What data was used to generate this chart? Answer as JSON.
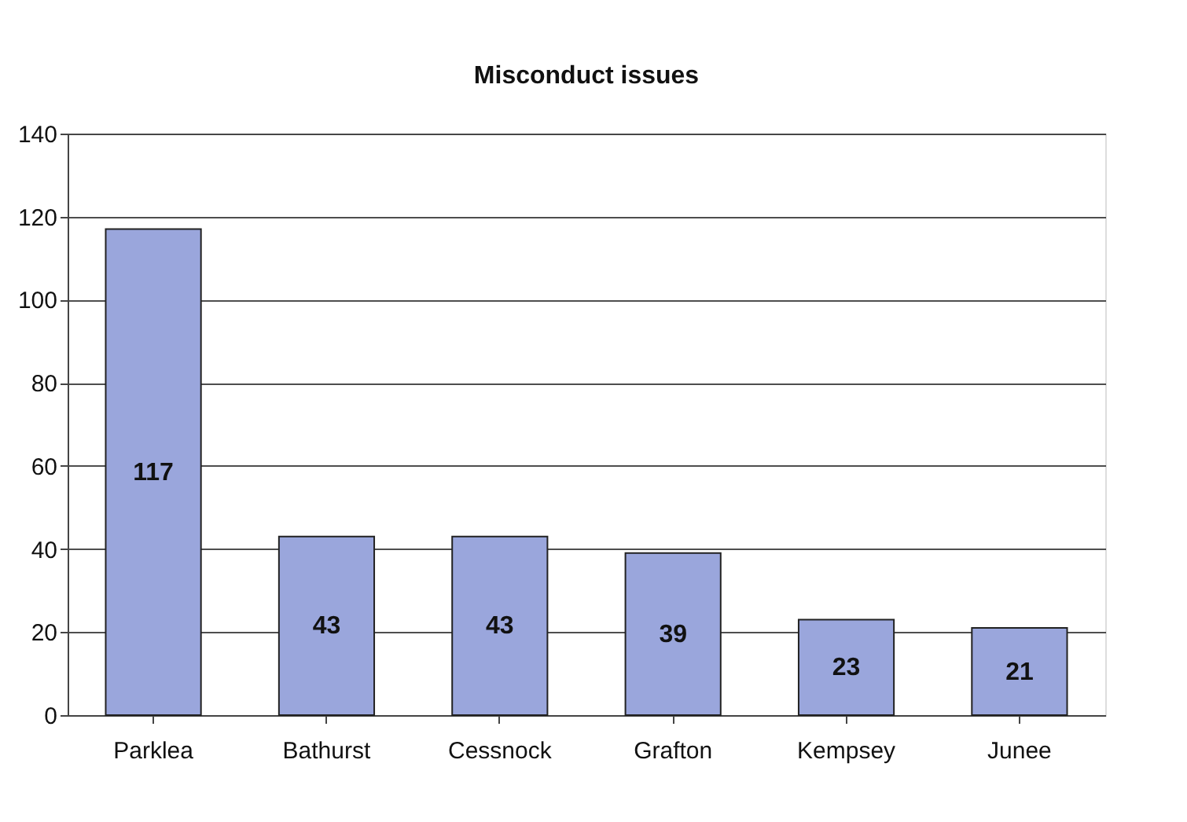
{
  "chart_data": {
    "type": "bar",
    "title": "Misconduct issues",
    "categories": [
      "Parklea",
      "Bathurst",
      "Cessnock",
      "Grafton",
      "Kempsey",
      "Junee"
    ],
    "values": [
      117,
      43,
      43,
      39,
      23,
      21
    ],
    "color": "#9aa6dc",
    "ylim": [
      0,
      140
    ],
    "yticks": [
      0,
      20,
      40,
      60,
      80,
      100,
      120,
      140
    ],
    "grid": "y",
    "data_labels": true
  }
}
